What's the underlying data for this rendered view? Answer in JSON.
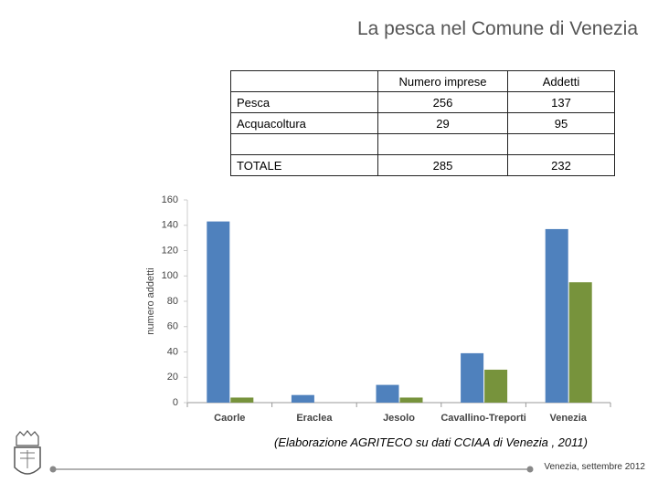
{
  "title": "La pesca nel Comune di Venezia",
  "table": {
    "header": [
      "Numero imprese",
      "Addetti"
    ],
    "rows": [
      [
        "Pesca",
        256,
        137
      ],
      [
        "Acquacoltura",
        29,
        95
      ],
      [
        "TOTALE",
        285,
        232
      ]
    ]
  },
  "chart_data": {
    "type": "bar",
    "y_label": "numero addetti",
    "categories": [
      "Caorle",
      "Eraclea",
      "Jesolo",
      "Cavallino-Treporti",
      "Venezia"
    ],
    "series": [
      {
        "color": "#4f81bd",
        "values": [
          143,
          6,
          14,
          39,
          137
        ]
      },
      {
        "color": "#77933c",
        "values": [
          4,
          0,
          4,
          26,
          95
        ]
      }
    ],
    "ylim": [
      0,
      160
    ],
    "yticks": [
      0,
      20,
      40,
      60,
      80,
      100,
      120,
      140,
      160
    ],
    "grid": false
  },
  "note": "(Elaborazione AGRITECO su dati CCIAA di Venezia , 2011)",
  "footer": "Venezia, settembre 2012"
}
